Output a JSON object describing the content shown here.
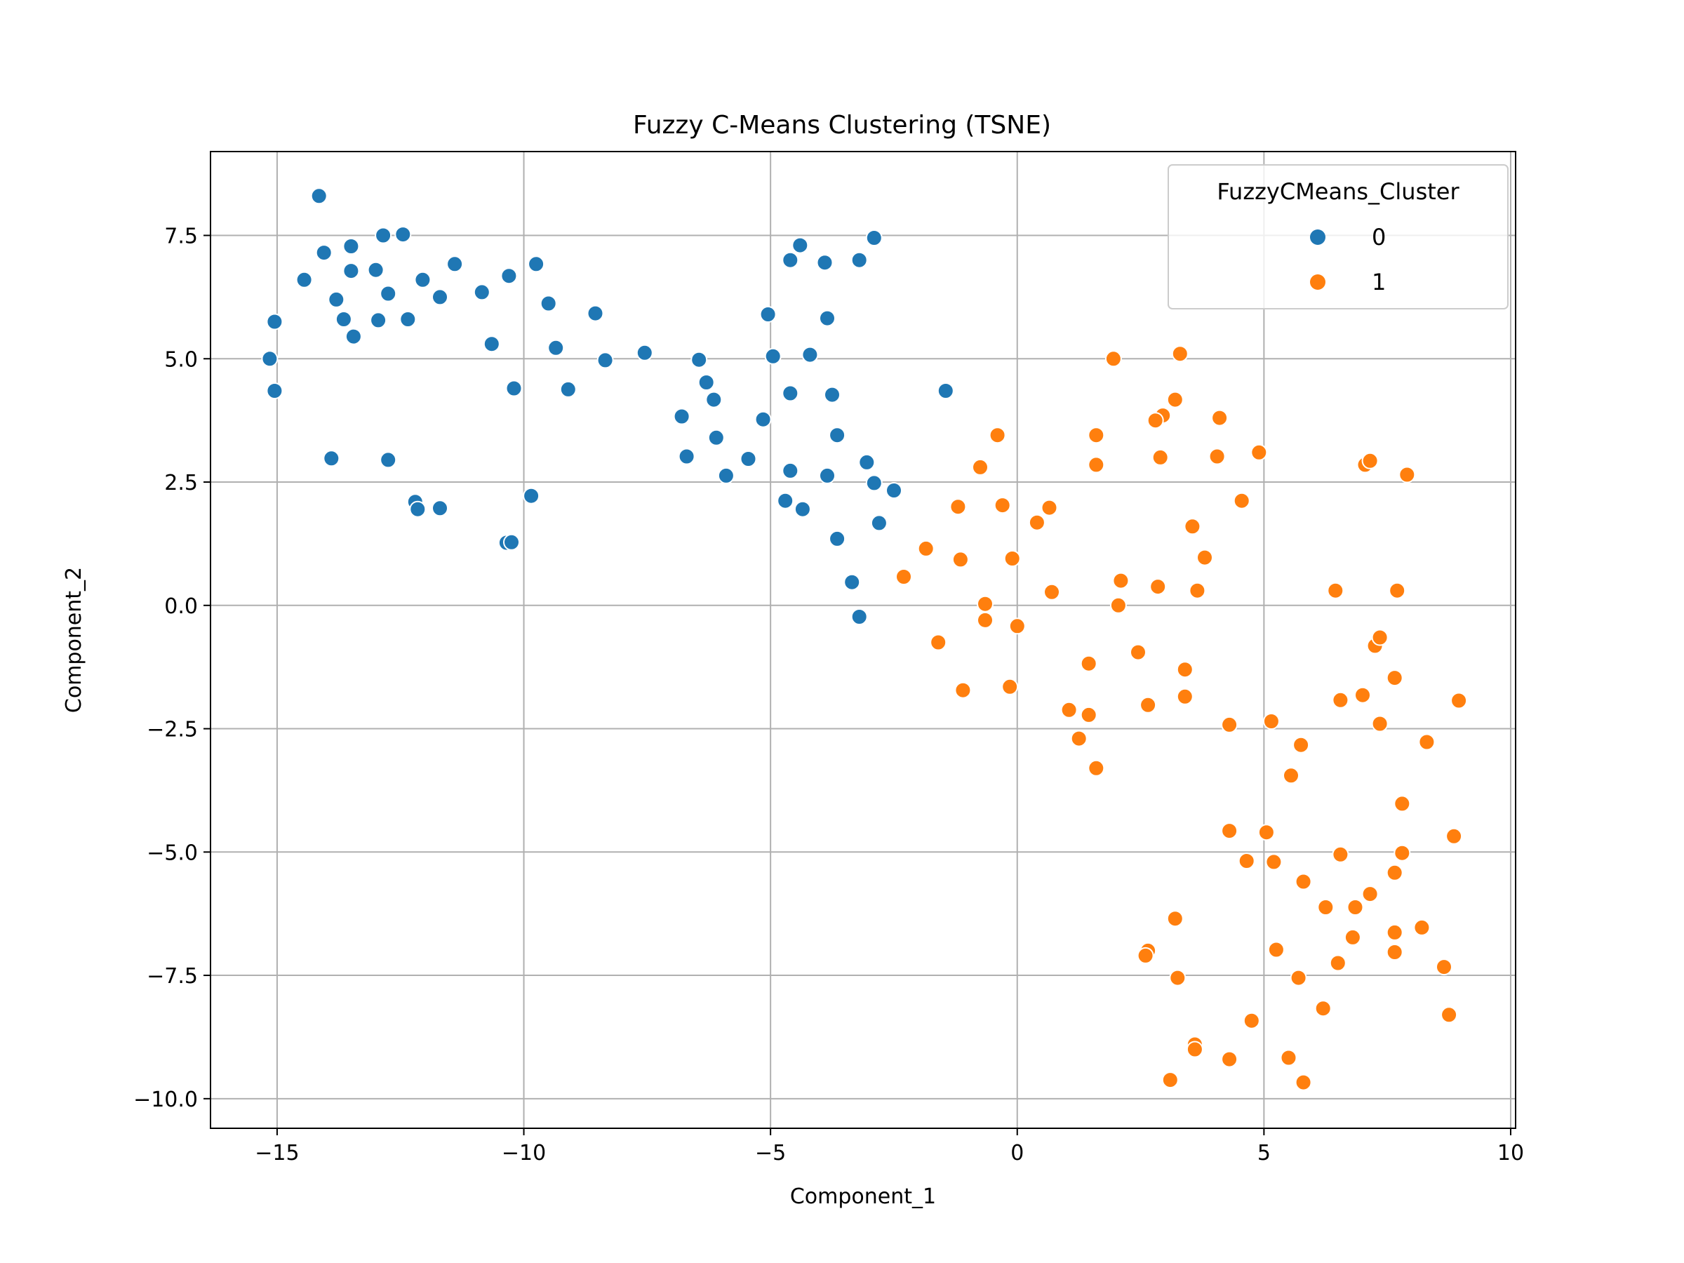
{
  "chart_data": {
    "type": "scatter",
    "title": "Fuzzy C-Means Clustering (TSNE)",
    "xlabel": "Component_1",
    "ylabel": "Component_2",
    "xlim": [
      -16.35,
      10.1
    ],
    "ylim": [
      -10.6,
      9.2
    ],
    "xticks": [
      -15,
      -10,
      -5,
      0,
      5,
      10
    ],
    "xtick_labels": [
      "−15",
      "−10",
      "−5",
      "0",
      "5",
      "10"
    ],
    "yticks": [
      -10.0,
      -7.5,
      -5.0,
      -2.5,
      0.0,
      2.5,
      5.0,
      7.5
    ],
    "ytick_labels": [
      "−10.0",
      "−7.5",
      "−5.0",
      "−2.5",
      "0.0",
      "2.5",
      "5.0",
      "7.5"
    ],
    "grid": true,
    "legend": {
      "title": "FuzzyCMeans_Cluster",
      "position": "top-right"
    },
    "series": [
      {
        "name": "0",
        "color": "#1f77b4",
        "points": [
          [
            -14.15,
            8.3
          ],
          [
            -14.05,
            7.15
          ],
          [
            -13.5,
            7.28
          ],
          [
            -12.85,
            7.5
          ],
          [
            -12.45,
            7.52
          ],
          [
            -14.45,
            6.6
          ],
          [
            -13.5,
            6.78
          ],
          [
            -13.0,
            6.8
          ],
          [
            -12.75,
            6.32
          ],
          [
            -12.05,
            6.6
          ],
          [
            -11.4,
            6.92
          ],
          [
            -11.7,
            6.25
          ],
          [
            -13.8,
            6.2
          ],
          [
            -13.65,
            5.8
          ],
          [
            -12.95,
            5.78
          ],
          [
            -12.35,
            5.8
          ],
          [
            -13.45,
            5.45
          ],
          [
            -15.05,
            5.75
          ],
          [
            -15.15,
            5.0
          ],
          [
            -15.05,
            4.35
          ],
          [
            -13.9,
            2.98
          ],
          [
            -12.75,
            2.95
          ],
          [
            -12.2,
            2.1
          ],
          [
            -12.15,
            1.95
          ],
          [
            -11.7,
            1.97
          ],
          [
            -10.85,
            6.35
          ],
          [
            -10.3,
            6.68
          ],
          [
            -9.75,
            6.92
          ],
          [
            -9.5,
            6.12
          ],
          [
            -10.65,
            5.3
          ],
          [
            -9.35,
            5.22
          ],
          [
            -10.2,
            4.4
          ],
          [
            -9.1,
            4.38
          ],
          [
            -8.55,
            5.92
          ],
          [
            -8.35,
            4.97
          ],
          [
            -7.55,
            5.12
          ],
          [
            -9.85,
            2.22
          ],
          [
            -10.35,
            1.27
          ],
          [
            -10.25,
            1.28
          ],
          [
            -6.45,
            4.98
          ],
          [
            -6.3,
            4.52
          ],
          [
            -6.15,
            4.17
          ],
          [
            -6.8,
            3.83
          ],
          [
            -6.1,
            3.4
          ],
          [
            -6.7,
            3.02
          ],
          [
            -5.9,
            2.63
          ],
          [
            -5.45,
            2.97
          ],
          [
            -5.15,
            3.77
          ],
          [
            -5.05,
            5.9
          ],
          [
            -4.95,
            5.05
          ],
          [
            -4.6,
            4.3
          ],
          [
            -4.2,
            5.08
          ],
          [
            -3.85,
            5.82
          ],
          [
            -3.75,
            4.27
          ],
          [
            -3.65,
            3.45
          ],
          [
            -4.6,
            2.73
          ],
          [
            -3.85,
            2.63
          ],
          [
            -4.7,
            2.12
          ],
          [
            -4.35,
            1.95
          ],
          [
            -3.65,
            1.35
          ],
          [
            -4.6,
            7.0
          ],
          [
            -4.4,
            7.3
          ],
          [
            -3.9,
            6.95
          ],
          [
            -3.2,
            7.0
          ],
          [
            -2.9,
            7.45
          ],
          [
            -3.05,
            2.9
          ],
          [
            -2.9,
            2.48
          ],
          [
            -2.5,
            2.33
          ],
          [
            -2.8,
            1.67
          ],
          [
            -3.35,
            0.47
          ],
          [
            -3.2,
            -0.23
          ],
          [
            -1.45,
            4.35
          ]
        ]
      },
      {
        "name": "1",
        "color": "#ff7f0e",
        "points": [
          [
            1.95,
            5.0
          ],
          [
            3.3,
            5.1
          ],
          [
            3.2,
            4.17
          ],
          [
            2.95,
            3.85
          ],
          [
            2.8,
            3.75
          ],
          [
            4.1,
            3.8
          ],
          [
            1.6,
            3.45
          ],
          [
            -0.4,
            3.45
          ],
          [
            1.6,
            2.85
          ],
          [
            -0.75,
            2.8
          ],
          [
            2.9,
            3.0
          ],
          [
            4.05,
            3.02
          ],
          [
            4.9,
            3.1
          ],
          [
            4.55,
            2.12
          ],
          [
            -1.2,
            2.0
          ],
          [
            -0.3,
            2.03
          ],
          [
            0.65,
            1.98
          ],
          [
            0.4,
            1.68
          ],
          [
            3.55,
            1.6
          ],
          [
            3.8,
            0.97
          ],
          [
            -1.85,
            1.15
          ],
          [
            -1.15,
            0.93
          ],
          [
            -0.1,
            0.95
          ],
          [
            -2.3,
            0.58
          ],
          [
            2.1,
            0.5
          ],
          [
            0.7,
            0.27
          ],
          [
            2.85,
            0.38
          ],
          [
            3.65,
            0.3
          ],
          [
            -0.65,
            0.03
          ],
          [
            2.05,
            0.0
          ],
          [
            -0.65,
            -0.3
          ],
          [
            0.0,
            -0.42
          ],
          [
            -1.6,
            -0.75
          ],
          [
            2.45,
            -0.95
          ],
          [
            1.45,
            -1.18
          ],
          [
            3.4,
            -1.3
          ],
          [
            -1.1,
            -1.72
          ],
          [
            -0.15,
            -1.65
          ],
          [
            3.4,
            -1.85
          ],
          [
            2.65,
            -2.02
          ],
          [
            1.05,
            -2.12
          ],
          [
            1.45,
            -2.22
          ],
          [
            1.25,
            -2.7
          ],
          [
            1.6,
            -3.3
          ],
          [
            4.3,
            -2.42
          ],
          [
            5.15,
            -2.35
          ],
          [
            5.75,
            -2.83
          ],
          [
            5.55,
            -3.45
          ],
          [
            6.45,
            0.3
          ],
          [
            7.7,
            0.3
          ],
          [
            7.25,
            -0.82
          ],
          [
            7.35,
            -0.65
          ],
          [
            7.65,
            -1.47
          ],
          [
            6.55,
            -1.92
          ],
          [
            7.0,
            -1.82
          ],
          [
            7.35,
            -2.4
          ],
          [
            8.95,
            -1.93
          ],
          [
            8.3,
            -2.77
          ],
          [
            7.8,
            -4.02
          ],
          [
            8.85,
            -4.68
          ],
          [
            4.3,
            -4.57
          ],
          [
            5.05,
            -4.6
          ],
          [
            4.65,
            -5.18
          ],
          [
            5.2,
            -5.2
          ],
          [
            5.8,
            -5.6
          ],
          [
            6.55,
            -5.05
          ],
          [
            7.8,
            -5.02
          ],
          [
            7.65,
            -5.42
          ],
          [
            6.25,
            -6.12
          ],
          [
            6.85,
            -6.12
          ],
          [
            7.15,
            -5.85
          ],
          [
            3.2,
            -6.35
          ],
          [
            8.2,
            -6.53
          ],
          [
            7.65,
            -6.63
          ],
          [
            6.8,
            -6.73
          ],
          [
            2.65,
            -7.0
          ],
          [
            2.6,
            -7.1
          ],
          [
            5.25,
            -6.98
          ],
          [
            7.65,
            -7.03
          ],
          [
            6.5,
            -7.25
          ],
          [
            8.65,
            -7.33
          ],
          [
            3.25,
            -7.55
          ],
          [
            5.7,
            -7.55
          ],
          [
            6.2,
            -8.17
          ],
          [
            8.75,
            -8.3
          ],
          [
            4.75,
            -8.42
          ],
          [
            3.6,
            -8.9
          ],
          [
            3.6,
            -9.0
          ],
          [
            4.3,
            -9.2
          ],
          [
            5.5,
            -9.17
          ],
          [
            3.1,
            -9.62
          ],
          [
            5.8,
            -9.67
          ],
          [
            7.05,
            2.85
          ],
          [
            7.15,
            2.93
          ],
          [
            7.9,
            2.65
          ]
        ]
      }
    ]
  }
}
